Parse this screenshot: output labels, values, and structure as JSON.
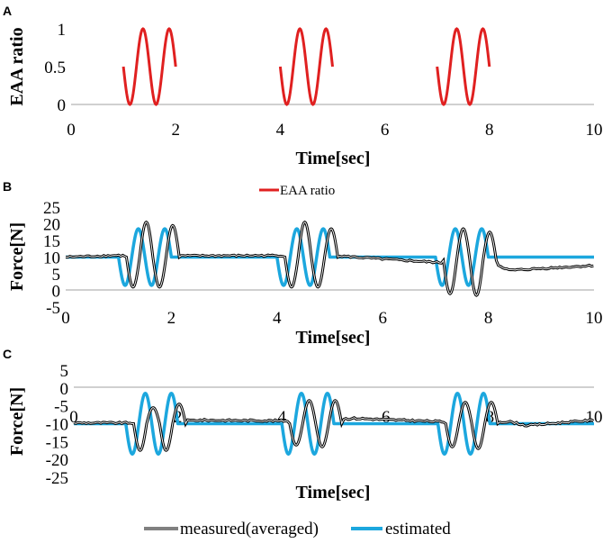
{
  "chart_data": [
    {
      "panel": "A",
      "type": "line",
      "xlabel": "Time[sec]",
      "ylabel": "EAA ratio",
      "xlim": [
        0,
        10
      ],
      "ylim": [
        0,
        1
      ],
      "xticks": [
        "0",
        "2",
        "4",
        "6",
        "8",
        "10"
      ],
      "yticks": [
        "0",
        "0.5",
        "1"
      ],
      "series": [
        {
          "name": "EAA ratio",
          "color": "#e02020",
          "segments": [
            {
              "t_start": 1,
              "t_end": 2,
              "cycles": 2,
              "offset": 0.5,
              "amplitude": 0.5
            },
            {
              "t_start": 4,
              "t_end": 5,
              "cycles": 2,
              "offset": 0.5,
              "amplitude": 0.5
            },
            {
              "t_start": 7,
              "t_end": 8,
              "cycles": 2,
              "offset": 0.5,
              "amplitude": 0.5
            }
          ]
        }
      ]
    },
    {
      "panel": "B",
      "type": "line",
      "xlabel": "Time[sec]",
      "ylabel": "Force[N]",
      "xlim": [
        0,
        10
      ],
      "ylim": [
        -5,
        25
      ],
      "xticks": [
        "0",
        "2",
        "4",
        "6",
        "8",
        "10"
      ],
      "yticks": [
        "-5",
        "0",
        "5",
        "10",
        "15",
        "20",
        "25"
      ],
      "legend_label": "EAA ratio",
      "baseline": 10,
      "series": [
        {
          "name": "estimated",
          "color": "#1ca7de",
          "baseline": 10,
          "segments": [
            {
              "t_start": 1,
              "t_end": 2,
              "cycles": 2,
              "amplitude": 8.5
            },
            {
              "t_start": 4,
              "t_end": 5,
              "cycles": 2,
              "amplitude": 8.5
            },
            {
              "t_start": 7,
              "t_end": 8,
              "cycles": 2,
              "amplitude": 8.5
            }
          ]
        },
        {
          "name": "measured(averaged)",
          "color": "#000000",
          "anchors": [
            [
              0,
              10
            ],
            [
              1.0,
              10.5
            ],
            [
              1.15,
              10.3
            ],
            [
              5.0,
              10.5
            ],
            [
              7.1,
              8.3
            ],
            [
              8.0,
              9.0
            ],
            [
              8.4,
              6.0
            ],
            [
              10,
              7.5
            ]
          ],
          "segments": [
            {
              "t_start": 1.15,
              "t_end": 2.15,
              "cycles": 2,
              "amplitudes": [
                -9,
                10.5,
                -9,
                9.5
              ],
              "offset": 10
            },
            {
              "t_start": 4.15,
              "t_end": 5.15,
              "cycles": 2,
              "amplitudes": [
                -9,
                10.5,
                -9,
                8.5
              ],
              "offset": 10
            },
            {
              "t_start": 7.15,
              "t_end": 8.15,
              "cycles": 2,
              "amplitudes": [
                -10,
                9.5,
                -10.5,
                8.5
              ],
              "offset": 9
            }
          ]
        }
      ]
    },
    {
      "panel": "C",
      "type": "line",
      "xlabel": "Time[sec]",
      "ylabel": "Force[N]",
      "xlim": [
        0,
        10
      ],
      "ylim": [
        -25,
        5
      ],
      "xticks": [
        "0",
        "2",
        "4",
        "6",
        "8",
        "10"
      ],
      "yticks": [
        "-25",
        "-20",
        "-15",
        "-10",
        "-5",
        "0",
        "5"
      ],
      "legend": [
        "measured(averaged)",
        "estimated"
      ],
      "series": [
        {
          "name": "estimated",
          "color": "#1ca7de",
          "baseline": -10,
          "segments": [
            {
              "t_start": 1,
              "t_end": 2,
              "cycles": 2,
              "amplitude": 8.5
            },
            {
              "t_start": 4,
              "t_end": 5,
              "cycles": 2,
              "amplitude": 8.5
            },
            {
              "t_start": 7,
              "t_end": 8,
              "cycles": 2,
              "amplitude": 8.5
            }
          ]
        },
        {
          "name": "measured(averaged)",
          "color": "#000000",
          "anchors": [
            [
              0,
              -9.8
            ],
            [
              1.15,
              -9.8
            ],
            [
              2.4,
              -9.0
            ],
            [
              4.15,
              -9.2
            ],
            [
              5.4,
              -8.5
            ],
            [
              7.15,
              -9.5
            ],
            [
              8.4,
              -9.5
            ],
            [
              8.7,
              -10.5
            ],
            [
              10,
              -9
            ]
          ],
          "segments": [
            {
              "t_start": 1.15,
              "t_end": 2.15,
              "cycles": 2,
              "amplitudes": [
                -7.5,
                4.5,
                -7.5,
                5.5
              ],
              "offset": -10
            },
            {
              "t_start": 4.15,
              "t_end": 5.15,
              "cycles": 2,
              "amplitudes": [
                -6,
                6.5,
                -6.5,
                6.5
              ],
              "offset": -10
            },
            {
              "t_start": 7.15,
              "t_end": 8.15,
              "cycles": 2,
              "amplitudes": [
                -6.5,
                6,
                -7,
                6
              ],
              "offset": -10
            }
          ]
        }
      ]
    }
  ],
  "panel_labels": [
    "A",
    "B",
    "C"
  ],
  "legend_bottom": {
    "measured": "measured(averaged)",
    "estimated": "estimated"
  },
  "legend_b": "EAA ratio",
  "colors": {
    "eaa": "#e02020",
    "estimated": "#1ca7de",
    "measured": "#000000",
    "axis": "#a0a0a0"
  }
}
